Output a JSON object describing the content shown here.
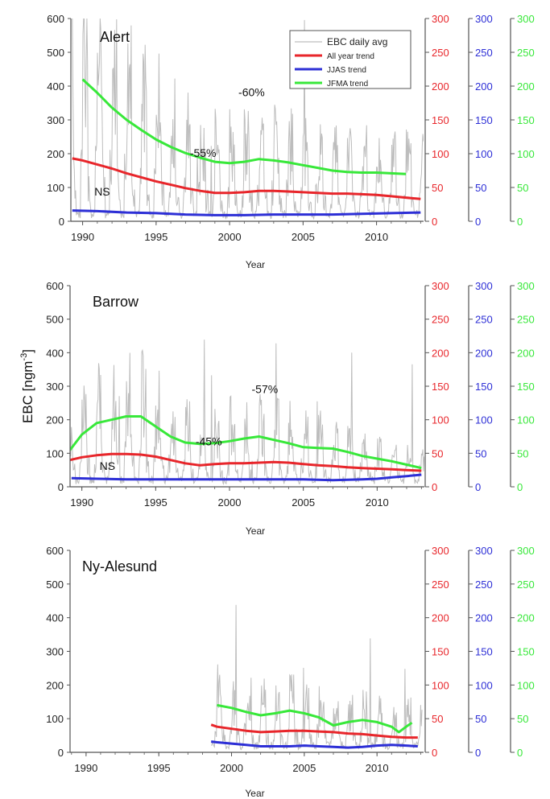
{
  "figure": {
    "ylabel_main": "EBC [ngm",
    "ylabel_sup": "-3",
    "ylabel_close": "]",
    "legend": [
      "EBC daily avg",
      "All year trend",
      "JJAS trend",
      "JFMA trend"
    ]
  },
  "colors": {
    "raw": "#bdbdbd",
    "all_year": "#e8262b",
    "jjas": "#2d2fd6",
    "jfma": "#38e83a",
    "axis": "#555555"
  },
  "chart_data": [
    {
      "type": "line",
      "station": "Alert",
      "xlabel": "Year",
      "xlim": [
        1989.2,
        2013.2
      ],
      "x_ticks": [
        "1990",
        "1995",
        "2000",
        "2005",
        "2010"
      ],
      "left_axis": {
        "ylim": [
          0,
          600
        ],
        "ticks": [
          "0",
          "100",
          "200",
          "300",
          "400",
          "500",
          "600"
        ]
      },
      "right_axes": [
        {
          "color": "red",
          "ylim": [
            0,
            300
          ],
          "ticks": [
            "0",
            "50",
            "100",
            "150",
            "200",
            "250",
            "300"
          ]
        },
        {
          "color": "blue",
          "ylim": [
            0,
            300
          ],
          "ticks": [
            "0",
            "50",
            "100",
            "150",
            "200",
            "250",
            "300"
          ]
        },
        {
          "color": "green",
          "ylim": [
            0,
            300
          ],
          "ticks": [
            "0",
            "50",
            "100",
            "150",
            "200",
            "250",
            "300"
          ]
        }
      ],
      "annotations": [
        {
          "text": "-60%",
          "x": 2000.6,
          "y": 185
        },
        {
          "text": "-55%",
          "x": 1997.3,
          "y": 95
        },
        {
          "text": "NS",
          "x": 1990.8,
          "y": 38
        }
      ],
      "series": [
        {
          "name": "All year trend",
          "axis": "red",
          "x": [
            1989.3,
            1990,
            1991,
            1992,
            1993,
            1994,
            1995,
            1996,
            1997,
            1998,
            1999,
            2000,
            2001,
            2002,
            2003,
            2004,
            2005,
            2006,
            2007,
            2008,
            2009,
            2010,
            2011,
            2012,
            2013
          ],
          "y": [
            93,
            90,
            84,
            78,
            71,
            65,
            59,
            54,
            49,
            45,
            42,
            42,
            43,
            45,
            45,
            44,
            43,
            42,
            41,
            41,
            40,
            39,
            37,
            35,
            33
          ]
        },
        {
          "name": "JJAS trend",
          "axis": "blue",
          "x": [
            1989.3,
            1991,
            1993,
            1995,
            1997,
            1999,
            2001,
            2003,
            2005,
            2007,
            2009,
            2011,
            2013
          ],
          "y": [
            16,
            15,
            13,
            12,
            10,
            9,
            9,
            10,
            10,
            10,
            11,
            12,
            13
          ]
        },
        {
          "name": "JFMA trend",
          "axis": "green",
          "x": [
            1990,
            1991,
            1992,
            1993,
            1994,
            1995,
            1996,
            1997,
            1998,
            1999,
            2000,
            2001,
            2002,
            2003,
            2004,
            2005,
            2006,
            2007,
            2008,
            2009,
            2010,
            2011,
            2012
          ],
          "y": [
            210,
            190,
            168,
            150,
            135,
            121,
            110,
            101,
            94,
            88,
            86,
            88,
            92,
            90,
            87,
            83,
            79,
            75,
            73,
            72,
            72,
            71,
            70
          ]
        }
      ]
    },
    {
      "type": "line",
      "station": "Barrow",
      "xlabel": "Year",
      "xlim": [
        1989.2,
        2013.2
      ],
      "x_ticks": [
        "1990",
        "1995",
        "2000",
        "2005",
        "2010"
      ],
      "left_axis": {
        "ylim": [
          0,
          600
        ],
        "ticks": [
          "0",
          "100",
          "200",
          "300",
          "400",
          "500",
          "600"
        ]
      },
      "right_axes": [
        {
          "color": "red",
          "ylim": [
            0,
            300
          ],
          "ticks": [
            "0",
            "50",
            "100",
            "150",
            "200",
            "250",
            "300"
          ]
        },
        {
          "color": "blue",
          "ylim": [
            0,
            300
          ],
          "ticks": [
            "0",
            "50",
            "100",
            "150",
            "200",
            "250",
            "300"
          ]
        },
        {
          "color": "green",
          "ylim": [
            0,
            300
          ],
          "ticks": [
            "0",
            "50",
            "100",
            "150",
            "200",
            "250",
            "300"
          ]
        }
      ],
      "annotations": [
        {
          "text": "-57%",
          "x": 2001.5,
          "y": 140
        },
        {
          "text": "-45%",
          "x": 1997.7,
          "y": 62
        },
        {
          "text": "NS",
          "x": 1991.2,
          "y": 25
        }
      ],
      "series": [
        {
          "name": "All year trend",
          "axis": "red",
          "x": [
            1989.2,
            1990,
            1991,
            1992,
            1993,
            1994,
            1995,
            1996,
            1997,
            1998,
            1999,
            2000,
            2001,
            2002,
            2003,
            2004,
            2005,
            2006,
            2007,
            2008,
            2009,
            2010,
            2011,
            2012,
            2013
          ],
          "y": [
            40,
            44,
            47,
            49,
            49,
            48,
            45,
            40,
            35,
            32,
            34,
            35,
            35,
            36,
            37,
            36,
            34,
            32,
            31,
            29,
            28,
            27,
            26,
            25,
            24
          ]
        },
        {
          "name": "JJAS trend",
          "axis": "blue",
          "x": [
            1989.3,
            1991,
            1993,
            1995,
            1997,
            1999,
            2001,
            2003,
            2005,
            2007,
            2009,
            2010,
            2011,
            2012,
            2013
          ],
          "y": [
            13,
            12,
            11,
            11,
            11,
            11,
            11,
            11,
            11,
            10,
            11,
            12,
            14,
            16,
            18
          ]
        },
        {
          "name": "JFMA trend",
          "axis": "green",
          "x": [
            1989.2,
            1990,
            1991,
            1992,
            1993,
            1994,
            1995,
            1996,
            1997,
            1998,
            1999,
            2000,
            2001,
            2002,
            2003,
            2004,
            2005,
            2006,
            2007,
            2008,
            2009,
            2010,
            2011,
            2012,
            2013
          ],
          "y": [
            55,
            78,
            95,
            100,
            105,
            105,
            90,
            75,
            66,
            64,
            65,
            68,
            72,
            75,
            70,
            65,
            59,
            58,
            57,
            52,
            46,
            42,
            38,
            33,
            28
          ]
        }
      ]
    },
    {
      "type": "line",
      "station": "Ny-Alesund",
      "xlabel": "Year",
      "xlim": [
        1988.9,
        2013.2
      ],
      "x_ticks": [
        "1990",
        "1995",
        "2000",
        "2005",
        "2010"
      ],
      "left_axis": {
        "ylim": [
          0,
          600
        ],
        "ticks": [
          "0",
          "100",
          "200",
          "300",
          "400",
          "500",
          "600"
        ]
      },
      "right_axes": [
        {
          "color": "red",
          "ylim": [
            0,
            300
          ],
          "ticks": [
            "0",
            "50",
            "100",
            "150",
            "200",
            "250",
            "300"
          ]
        },
        {
          "color": "blue",
          "ylim": [
            0,
            300
          ],
          "ticks": [
            "0",
            "50",
            "100",
            "150",
            "200",
            "250",
            "300"
          ]
        },
        {
          "color": "green",
          "ylim": [
            0,
            300
          ],
          "ticks": [
            "0",
            "50",
            "100",
            "150",
            "200",
            "250",
            "300"
          ]
        }
      ],
      "annotations": [],
      "series": [
        {
          "name": "All year trend",
          "axis": "red",
          "x": [
            1998.6,
            1999,
            2000,
            2001,
            2002,
            2003,
            2004,
            2005,
            2006,
            2007,
            2008,
            2009,
            2010,
            2011,
            2012,
            2012.8
          ],
          "y": [
            41,
            38,
            35,
            32,
            30,
            31,
            32,
            32,
            31,
            30,
            28,
            27,
            25,
            23,
            22,
            22
          ]
        },
        {
          "name": "JJAS trend",
          "axis": "blue",
          "x": [
            1998.6,
            1999,
            2000,
            2001,
            2002,
            2003,
            2004,
            2005,
            2006,
            2007,
            2008,
            2009,
            2010,
            2011,
            2012,
            2012.8
          ],
          "y": [
            16,
            15,
            13,
            11,
            9,
            9,
            9,
            10,
            9,
            8,
            7,
            8,
            10,
            11,
            10,
            9
          ]
        },
        {
          "name": "JFMA trend",
          "axis": "green",
          "x": [
            1999,
            2000,
            2001,
            2002,
            2003,
            2004,
            2005,
            2006,
            2007,
            2008,
            2009,
            2010,
            2011,
            2011.5,
            2012,
            2012.4
          ],
          "y": [
            70,
            66,
            60,
            55,
            58,
            62,
            58,
            52,
            40,
            45,
            48,
            45,
            38,
            30,
            38,
            44
          ]
        }
      ]
    }
  ]
}
